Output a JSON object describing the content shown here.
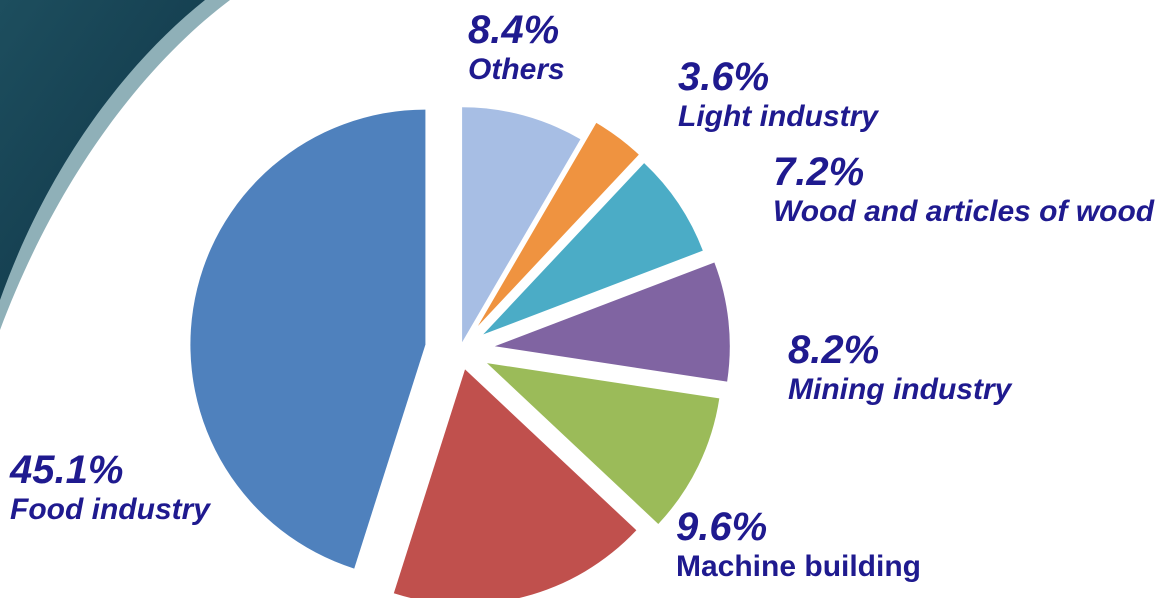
{
  "chart_data": {
    "type": "pie",
    "categories": [
      "Others",
      "Light industry",
      "Wood and articles of wood",
      "Mining industry",
      "Machine building",
      null,
      "Food industry"
    ],
    "values": [
      8.4,
      3.6,
      7.2,
      8.2,
      9.6,
      17.9,
      45.1
    ],
    "value_labels": [
      "8.4%",
      "3.6%",
      "7.2%",
      "8.2%",
      "9.6%",
      null,
      "45.1%"
    ],
    "colors": [
      "#a7bee4",
      "#ef9340",
      "#4bacc6",
      "#8064a2",
      "#9bbb59",
      "#c0504d",
      "#4f81bd"
    ]
  }
}
